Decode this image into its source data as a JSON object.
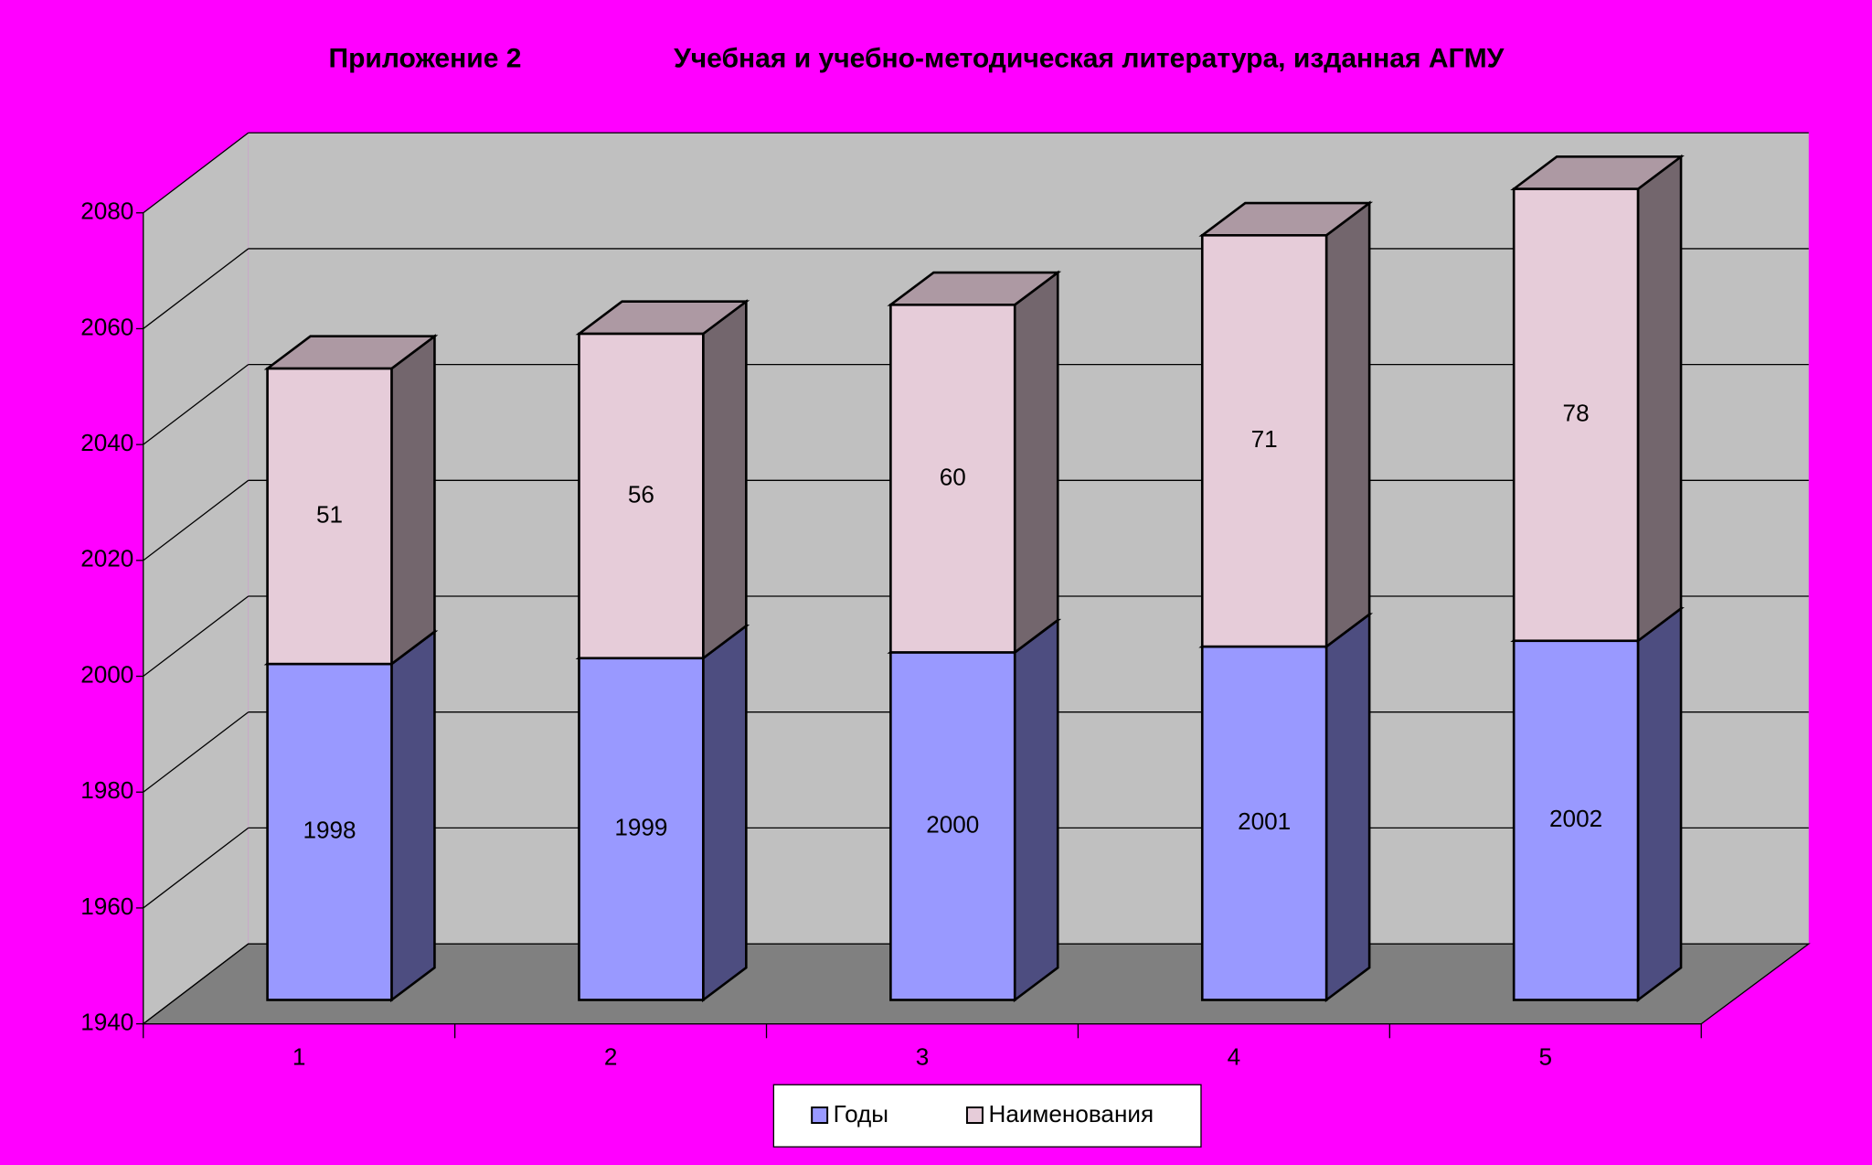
{
  "chart_data": {
    "type": "bar3d_stacked",
    "annotation": "Приложение 2",
    "title": "Учебная и учебно-методическая литература, изданная АГМУ",
    "categories": [
      "1",
      "2",
      "3",
      "4",
      "5"
    ],
    "series": [
      {
        "name": "Годы",
        "color": "#9999ff",
        "values": [
          1998,
          1999,
          2000,
          2001,
          2002
        ]
      },
      {
        "name": "Наименования",
        "color": "#e6ccd9",
        "values": [
          51,
          56,
          60,
          71,
          78
        ]
      }
    ],
    "ylim": [
      1940,
      2080
    ],
    "yticks": [
      1940,
      1960,
      1980,
      2000,
      2020,
      2040,
      2060,
      2080
    ],
    "grid": true,
    "legend": "bottom"
  }
}
